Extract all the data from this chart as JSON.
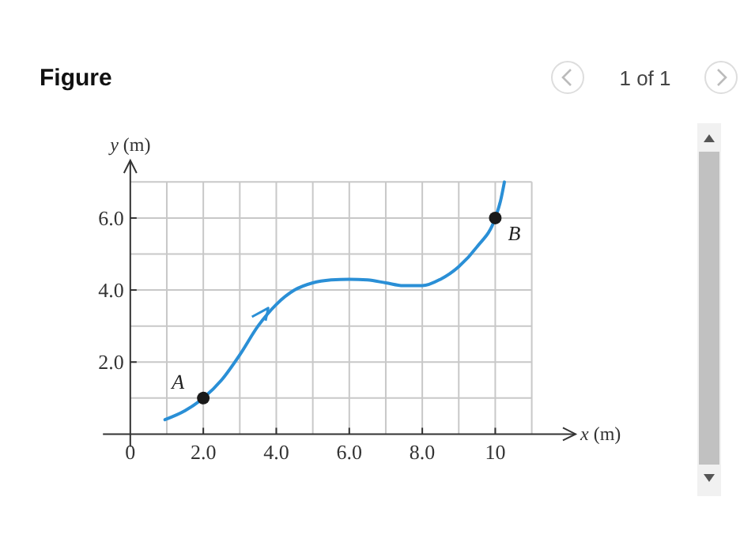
{
  "chart_data": {
    "type": "line",
    "title": "Figure",
    "xlabel": "x (m)",
    "ylabel": "y (m)",
    "annotations": [
      "1 of 1"
    ],
    "xlim": [
      -0.75,
      12.2
    ],
    "ylim": [
      0,
      7.6
    ],
    "xticks": [
      {
        "value": 0,
        "label": "0"
      },
      {
        "value": 1,
        "label": null
      },
      {
        "value": 2,
        "label": "2.0"
      },
      {
        "value": 3,
        "label": null
      },
      {
        "value": 4,
        "label": "4.0"
      },
      {
        "value": 5,
        "label": null
      },
      {
        "value": 6,
        "label": "6.0"
      },
      {
        "value": 7,
        "label": null
      },
      {
        "value": 8,
        "label": "8.0"
      },
      {
        "value": 9,
        "label": null
      },
      {
        "value": 10,
        "label": "10"
      },
      {
        "value": 11,
        "label": null
      }
    ],
    "yticks": [
      {
        "value": 1,
        "label": null
      },
      {
        "value": 2,
        "label": "2.0"
      },
      {
        "value": 3,
        "label": null
      },
      {
        "value": 4,
        "label": "4.0"
      },
      {
        "value": 5,
        "label": null
      },
      {
        "value": 6,
        "label": "6.0"
      },
      {
        "value": 7,
        "label": null
      }
    ],
    "grid": true,
    "series": [
      {
        "color": "#2a8fd6",
        "x": [
          0.95,
          1.5,
          2,
          2.5,
          3,
          3.5,
          4,
          4.5,
          5,
          5.5,
          6,
          6.5,
          7,
          7.5,
          8,
          8.5,
          9,
          9.5,
          10,
          10.15,
          10.25
        ],
        "values": [
          0.4,
          0.65,
          1.0,
          1.5,
          2.2,
          3.0,
          3.6,
          4.0,
          4.2,
          4.28,
          4.3,
          4.28,
          4.2,
          4.12,
          4.12,
          4.3,
          4.65,
          5.2,
          6.0,
          6.5,
          7.0
        ]
      },
      {
        "name": "A",
        "type": "scatter",
        "color": "#1a1a1a",
        "x": [
          2
        ],
        "values": [
          1.0
        ]
      },
      {
        "name": "B",
        "type": "scatter",
        "color": "#1a1a1a",
        "x": [
          10
        ],
        "values": [
          6.0
        ]
      }
    ]
  }
}
